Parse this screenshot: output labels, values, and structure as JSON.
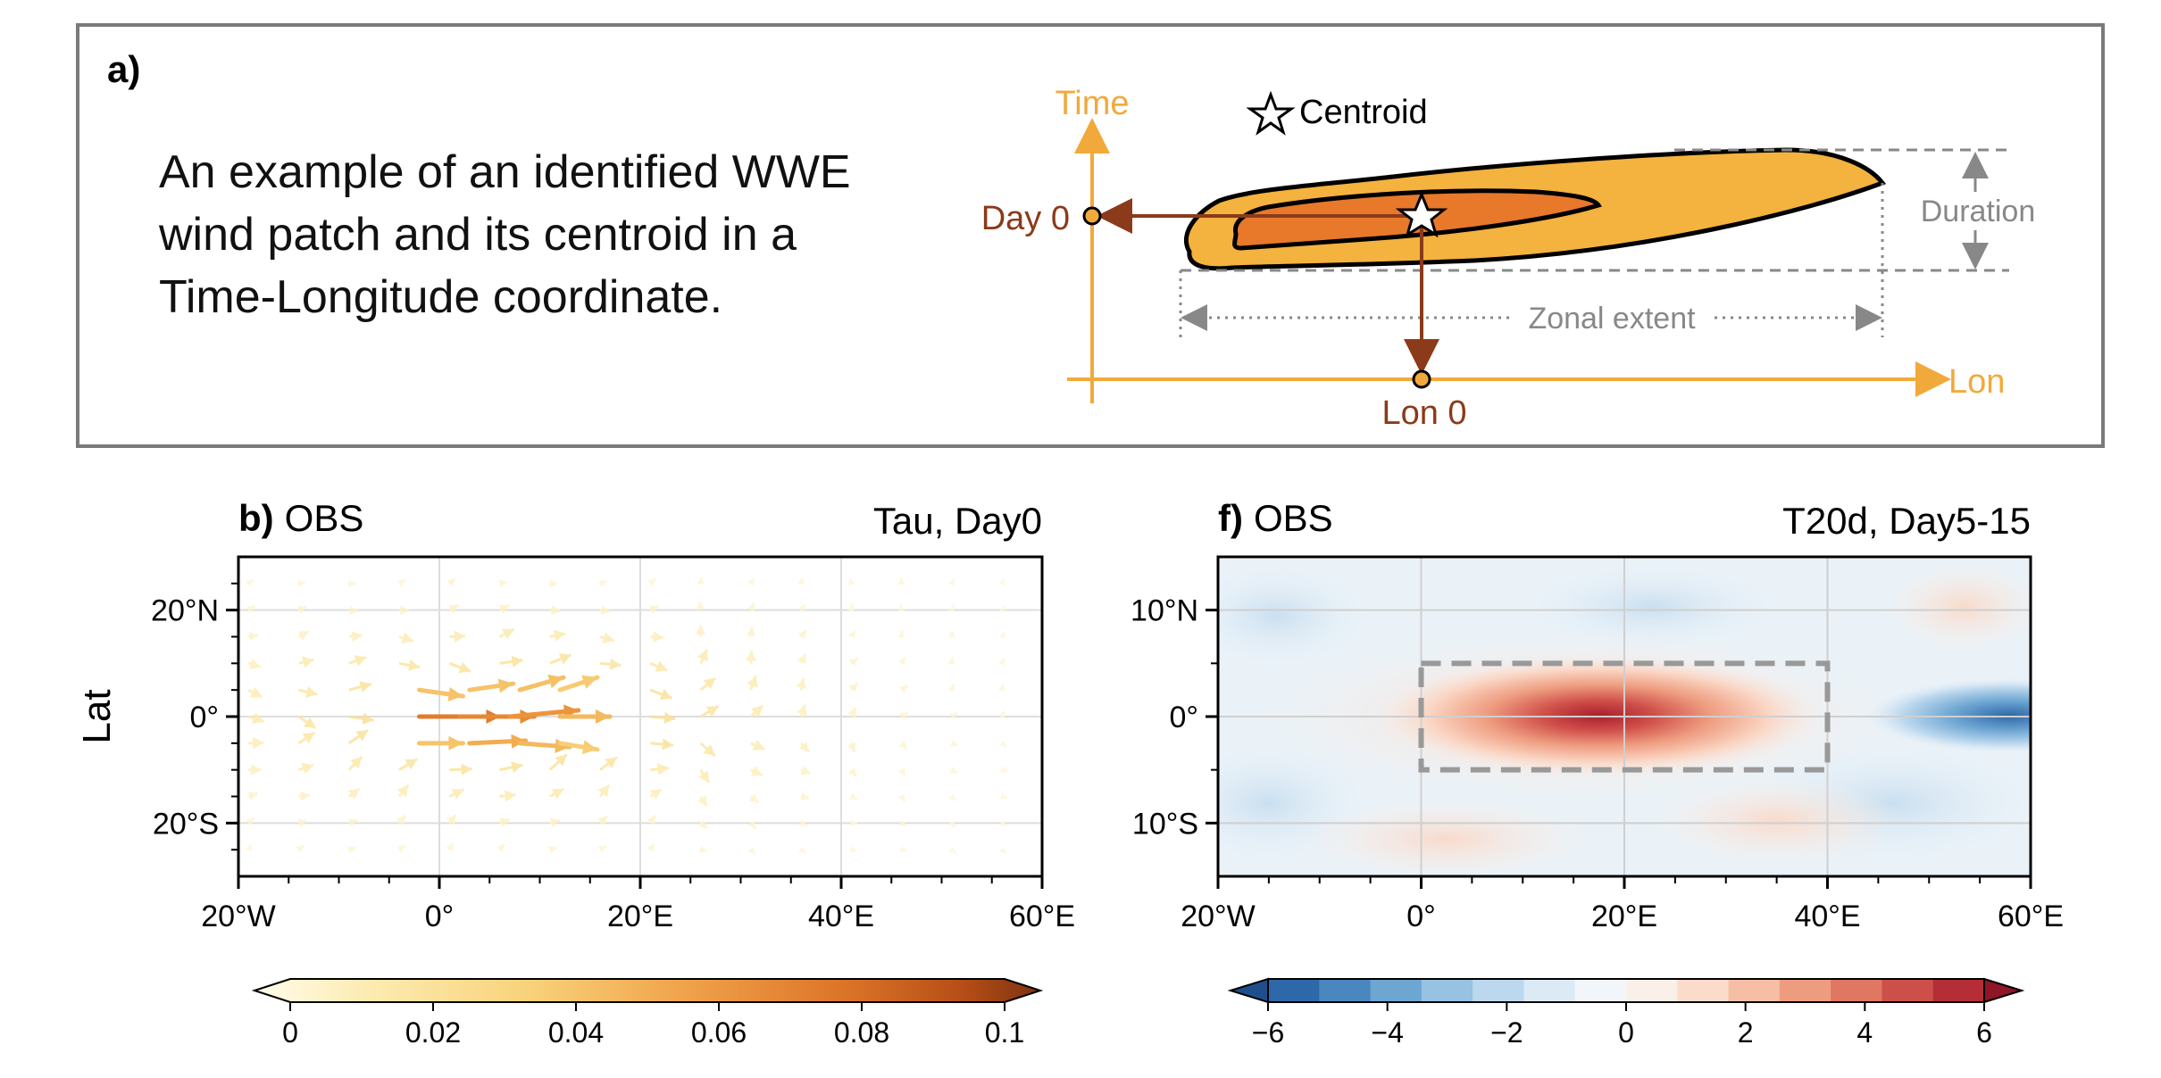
{
  "colors": {
    "time_axis": "#F2A93B",
    "day_lon_arrow": "#8B3A1A",
    "patch_outer": "#F4B23E",
    "patch_inner": "#E8782A",
    "dim_gray": "#888888",
    "panel_border": "#7a7a7a",
    "dashed_box": "#999999"
  },
  "panel_a": {
    "label": "a)",
    "text_lines": [
      "An example of an identified WWE",
      "wind patch and its centroid in a",
      "Time-Longitude coordinate."
    ],
    "legend_label": "Centroid",
    "legend_icon": "star-icon",
    "time_axis_label": "Time",
    "lon_axis_label": "Lon",
    "day0_label": "Day 0",
    "lon0_label": "Lon 0",
    "duration_label": "Duration",
    "zonal_extent_label": "Zonal extent"
  },
  "panel_b": {
    "label": "b)",
    "title_left": "OBS",
    "title_right": "Tau, Day0",
    "ylabel": "Lat"
  },
  "panel_f": {
    "label": "f)",
    "title_left": "OBS",
    "title_right": "T20d, Day5-15"
  },
  "chart_data": [
    {
      "type": "vector",
      "panel": "b",
      "x_ticks": [
        -20,
        0,
        20,
        40,
        60
      ],
      "x_tick_labels": [
        "20°W",
        "0°",
        "20°E",
        "40°E",
        "60°E"
      ],
      "y_ticks": [
        20,
        0,
        -20
      ],
      "y_tick_labels": [
        "20°N",
        "0°",
        "20°S"
      ],
      "xlim": [
        -20,
        60
      ],
      "ylim": [
        -30,
        30
      ],
      "grid": true,
      "vectors": [
        {
          "lon": -2,
          "lat": 0,
          "u": 0.065,
          "v": 0
        },
        {
          "lon": 2,
          "lat": 0,
          "u": 0.06,
          "v": 0
        },
        {
          "lon": 7,
          "lat": 0,
          "u": 0.055,
          "v": 0.005
        },
        {
          "lon": 12,
          "lat": 0,
          "u": 0.04,
          "v": 0
        },
        {
          "lon": -2,
          "lat": 5,
          "u": 0.035,
          "v": -0.005
        },
        {
          "lon": 3,
          "lat": 5,
          "u": 0.035,
          "v": 0.005
        },
        {
          "lon": 8,
          "lat": 5,
          "u": 0.035,
          "v": 0.01
        },
        {
          "lon": 12,
          "lat": 5,
          "u": 0.03,
          "v": 0.01
        },
        {
          "lon": -2,
          "lat": -5,
          "u": 0.035,
          "v": 0
        },
        {
          "lon": 3,
          "lat": -5,
          "u": 0.045,
          "v": 0.002
        },
        {
          "lon": 8,
          "lat": -5,
          "u": 0.04,
          "v": -0.003
        },
        {
          "lon": 12,
          "lat": -5,
          "u": 0.03,
          "v": -0.005
        }
      ],
      "colorbar": {
        "ticks": [
          0,
          0.02,
          0.04,
          0.06,
          0.08,
          0.1
        ],
        "tick_labels": [
          "0",
          "0.02",
          "0.04",
          "0.06",
          "0.08",
          "0.1"
        ],
        "range": [
          0,
          0.1
        ],
        "colors": [
          "#FFFCEB",
          "#FCE9A8",
          "#F8D27A",
          "#F3B256",
          "#EB8F38",
          "#D86C22",
          "#B64E17",
          "#8A3610"
        ]
      }
    },
    {
      "type": "heatmap",
      "panel": "f",
      "x_ticks": [
        -20,
        0,
        20,
        40,
        60
      ],
      "x_tick_labels": [
        "20°W",
        "0°",
        "20°E",
        "40°E",
        "60°E"
      ],
      "y_ticks": [
        10,
        0,
        -10
      ],
      "y_tick_labels": [
        "10°N",
        "0°",
        "10°S"
      ],
      "xlim": [
        -20,
        60
      ],
      "ylim": [
        -15,
        15
      ],
      "grid": true,
      "highlight_box": {
        "lon": [
          0,
          40
        ],
        "lat": [
          -5,
          5
        ]
      },
      "colorbar": {
        "ticks": [
          -6,
          -4,
          -2,
          0,
          2,
          4,
          6
        ],
        "tick_labels": [
          "−6",
          "−4",
          "−2",
          "0",
          "2",
          "4",
          "6"
        ],
        "range": [
          -6,
          6
        ],
        "colors": [
          "#1F4E8C",
          "#2E68A8",
          "#4A87BF",
          "#6EA6D2",
          "#97C2E2",
          "#BCD8EE",
          "#DCEAF5",
          "#F2F6FA",
          "#FBF0E9",
          "#FBDCCB",
          "#F6BFA5",
          "#EE9C80",
          "#E07762",
          "#CC5049",
          "#B52E36",
          "#8E1626"
        ]
      }
    }
  ]
}
